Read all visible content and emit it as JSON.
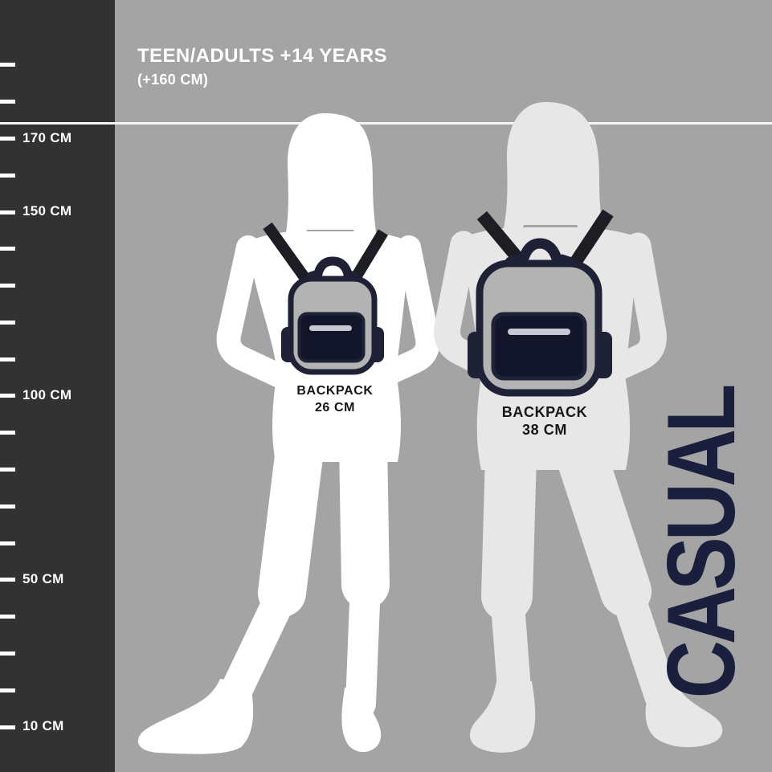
{
  "header": {
    "title": "TEEN/ADULTS +14 YEARS",
    "subtitle": "(+160 CM)"
  },
  "ruler": {
    "unit": "CM",
    "ticks": [
      {
        "cm": 190
      },
      {
        "cm": 180
      },
      {
        "cm": 170,
        "label": "170 CM"
      },
      {
        "cm": 160
      },
      {
        "cm": 150,
        "label": "150 CM"
      },
      {
        "cm": 140
      },
      {
        "cm": 130
      },
      {
        "cm": 120
      },
      {
        "cm": 110
      },
      {
        "cm": 100,
        "label": "100 CM"
      },
      {
        "cm": 90
      },
      {
        "cm": 80
      },
      {
        "cm": 70
      },
      {
        "cm": 60
      },
      {
        "cm": 50,
        "label": "50 CM"
      },
      {
        "cm": 40
      },
      {
        "cm": 30
      },
      {
        "cm": 20
      },
      {
        "cm": 10,
        "label": "10 CM"
      }
    ]
  },
  "figures": [
    {
      "name": "teen-adult-with-small-backpack",
      "backpack": {
        "label": "BACKPACK",
        "size": "26 CM"
      }
    },
    {
      "name": "teen-adult-with-large-backpack",
      "backpack": {
        "label": "BACKPACK",
        "size": "38 CM"
      }
    }
  ],
  "side_label": {
    "text": "CASUAL"
  },
  "colors": {
    "background": "#a4a4a4",
    "ruler_background": "#323232",
    "divider_line": "#f5f5f5",
    "title_text": "#ffffff",
    "figure_small": "#ffffff",
    "figure_large": "#e7e7e7",
    "strap_black": "#1d1e24",
    "backpack_outline_navy": "#1f2236",
    "backpack_pocket_navy": "#13162a",
    "backpack_gray": "#b3b3b3",
    "zipper_gray": "#c6c9d1",
    "backpack_label_text": "#161616",
    "casual_navy": "#1a1f3d"
  }
}
